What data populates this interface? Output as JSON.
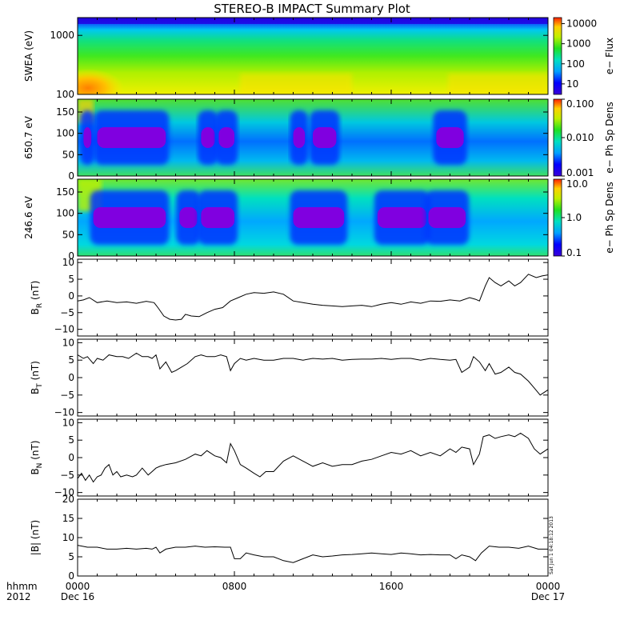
{
  "title": "STEREO-B IMPACT Summary Plot",
  "timestamp": "Sat Jun 1 04:18:12 2013",
  "colors": {
    "line": "#000000",
    "background": "#ffffff"
  },
  "footer": {
    "hhmm": "hhmm",
    "year": "2012"
  },
  "chart_data": [
    {
      "type": "heatmap",
      "id": "swea",
      "ylabel": "SWEA (eV)",
      "yscale": "log",
      "ylim": [
        100,
        2000
      ],
      "yticks": [
        100,
        1000
      ],
      "ytick_labels": [
        "100",
        "1000"
      ],
      "colorbar": {
        "label": "e− Flux",
        "scale": "log",
        "range": [
          3,
          20000
        ],
        "ticks": [
          10,
          100,
          1000,
          10000
        ],
        "tick_labels": [
          "10",
          "100",
          "1000",
          "10000"
        ]
      },
      "features": [
        "low energies (100-300 eV) ~ 1000-5000 flux",
        "upper energies (>1500 eV) ~ 3-10 flux",
        "enhancement near 0000-0200 at 100 eV"
      ]
    },
    {
      "type": "heatmap",
      "id": "pad650",
      "ylabel": "650.7 eV",
      "ylim": [
        0,
        180
      ],
      "yticks": [
        0,
        50,
        100,
        150
      ],
      "ytick_labels": [
        "0",
        "50",
        "100",
        "150"
      ],
      "colorbar": {
        "label": "e− Ph Sp Dens",
        "scale": "log",
        "range": [
          0.001,
          0.1
        ],
        "ticks": [
          0.001,
          0.01,
          0.1
        ],
        "tick_labels": [
          "0.001",
          "0.010",
          "0.100"
        ]
      },
      "depletion_intervals_hours": [
        [
          0.3,
          0.7
        ],
        [
          1.0,
          4.5
        ],
        [
          6.3,
          7.0
        ],
        [
          7.2,
          8.0
        ],
        [
          11.0,
          11.6
        ],
        [
          12.0,
          13.2
        ],
        [
          18.3,
          19.7
        ]
      ]
    },
    {
      "type": "heatmap",
      "id": "pad246",
      "ylabel": "246.6 eV",
      "ylim": [
        0,
        180
      ],
      "yticks": [
        0,
        50,
        100,
        150
      ],
      "ytick_labels": [
        "0",
        "50",
        "100",
        "150"
      ],
      "colorbar": {
        "label": "e− Ph Sp Dens",
        "scale": "log",
        "range": [
          0.1,
          10
        ],
        "ticks": [
          0.1,
          1,
          10
        ],
        "tick_labels": [
          "0.1",
          "1.0",
          "10.0"
        ]
      },
      "depletion_intervals_hours": [
        [
          0.8,
          4.5
        ],
        [
          5.2,
          6.1
        ],
        [
          6.3,
          8.0
        ],
        [
          11.0,
          13.6
        ],
        [
          15.3,
          17.8
        ],
        [
          17.9,
          19.8
        ]
      ]
    },
    {
      "type": "line",
      "id": "br",
      "ylabel": "B",
      "ylabel_sub": "R",
      "ylabel_unit": "(nT)",
      "ylim": [
        -12,
        11
      ],
      "yticks": [
        -10,
        -5,
        0,
        5,
        10
      ],
      "ytick_labels": [
        "−10",
        "−5",
        "0",
        "5",
        "10"
      ],
      "x": [
        0,
        0.3,
        0.6,
        1.0,
        1.5,
        2.0,
        2.5,
        3.0,
        3.5,
        3.9,
        4.1,
        4.4,
        4.7,
        5.0,
        5.3,
        5.5,
        5.8,
        6.2,
        6.6,
        7.0,
        7.4,
        7.8,
        8.2,
        8.6,
        9.0,
        9.5,
        10.0,
        10.5,
        11.0,
        11.5,
        12.0,
        12.5,
        13.0,
        13.5,
        14.0,
        14.5,
        15.0,
        15.5,
        16.0,
        16.5,
        17.0,
        17.5,
        18.0,
        18.5,
        19.0,
        19.5,
        20.0,
        20.3,
        20.5,
        20.8,
        21.0,
        21.3,
        21.6,
        22.0,
        22.3,
        22.6,
        23.0,
        23.4,
        23.7,
        24.0
      ],
      "y": [
        -1.5,
        -1.2,
        -0.5,
        -2.0,
        -1.5,
        -2.0,
        -1.8,
        -2.2,
        -1.6,
        -2.0,
        -3.5,
        -6.0,
        -7.0,
        -7.2,
        -7.0,
        -5.5,
        -6.0,
        -6.2,
        -5.0,
        -4.0,
        -3.5,
        -1.5,
        -0.5,
        0.5,
        1.0,
        0.8,
        1.2,
        0.5,
        -1.5,
        -2.0,
        -2.5,
        -2.8,
        -3.0,
        -3.2,
        -3.0,
        -2.8,
        -3.2,
        -2.5,
        -2.0,
        -2.5,
        -1.8,
        -2.2,
        -1.5,
        -1.6,
        -1.2,
        -1.5,
        -0.5,
        -1.0,
        -1.5,
        3.0,
        5.5,
        4.0,
        3.0,
        4.5,
        3.0,
        4.0,
        6.5,
        5.5,
        6.0,
        6.3
      ]
    },
    {
      "type": "line",
      "id": "bt",
      "ylabel": "B",
      "ylabel_sub": "T",
      "ylabel_unit": "(nT)",
      "ylim": [
        -11,
        11
      ],
      "yticks": [
        -10,
        -5,
        0,
        5,
        10
      ],
      "ytick_labels": [
        "−10",
        "−5",
        "0",
        "5",
        "10"
      ],
      "x": [
        0,
        0.3,
        0.5,
        0.8,
        1.0,
        1.3,
        1.6,
        2.0,
        2.3,
        2.6,
        3.0,
        3.3,
        3.6,
        3.8,
        4.0,
        4.2,
        4.5,
        4.8,
        5.0,
        5.3,
        5.6,
        6.0,
        6.3,
        6.6,
        7.0,
        7.3,
        7.6,
        7.8,
        8.0,
        8.3,
        8.6,
        9.0,
        9.5,
        10.0,
        10.5,
        11.0,
        11.5,
        12.0,
        12.5,
        13.0,
        13.5,
        14.0,
        14.5,
        15.0,
        15.5,
        16.0,
        16.5,
        17.0,
        17.5,
        18.0,
        18.5,
        19.0,
        19.3,
        19.6,
        20.0,
        20.2,
        20.5,
        20.8,
        21.0,
        21.3,
        21.6,
        22.0,
        22.3,
        22.6,
        23.0,
        23.3,
        23.6,
        24.0
      ],
      "y": [
        6.5,
        5.5,
        6.0,
        4.0,
        5.5,
        5.0,
        6.5,
        6.0,
        6.0,
        5.5,
        7.0,
        6.0,
        6.0,
        5.5,
        6.5,
        2.5,
        4.5,
        1.5,
        2.0,
        3.0,
        4.0,
        6.0,
        6.5,
        6.0,
        6.0,
        6.5,
        6.0,
        2.0,
        4.0,
        5.5,
        5.0,
        5.5,
        5.0,
        5.0,
        5.5,
        5.5,
        5.0,
        5.5,
        5.3,
        5.5,
        5.0,
        5.2,
        5.3,
        5.3,
        5.5,
        5.2,
        5.5,
        5.5,
        5.0,
        5.5,
        5.2,
        5.0,
        5.2,
        1.5,
        3.0,
        6.0,
        4.5,
        2.0,
        4.0,
        1.0,
        1.5,
        3.0,
        1.5,
        1.0,
        -1.0,
        -3.0,
        -5.0,
        -3.5
      ]
    },
    {
      "type": "line",
      "id": "bn",
      "ylabel": "B",
      "ylabel_sub": "N",
      "ylabel_unit": "(nT)",
      "ylim": [
        -11,
        11
      ],
      "yticks": [
        -10,
        -5,
        0,
        5,
        10
      ],
      "ytick_labels": [
        "−10",
        "−5",
        "0",
        "5",
        "10"
      ],
      "x": [
        0,
        0.2,
        0.4,
        0.6,
        0.8,
        1.0,
        1.2,
        1.4,
        1.6,
        1.8,
        2.0,
        2.2,
        2.5,
        2.8,
        3.0,
        3.3,
        3.6,
        3.8,
        4.0,
        4.2,
        4.5,
        5.0,
        5.5,
        6.0,
        6.3,
        6.6,
        7.0,
        7.3,
        7.6,
        7.8,
        8.0,
        8.3,
        8.6,
        9.0,
        9.3,
        9.6,
        10.0,
        10.5,
        11.0,
        11.5,
        12.0,
        12.5,
        13.0,
        13.5,
        14.0,
        14.5,
        15.0,
        15.5,
        16.0,
        16.5,
        17.0,
        17.5,
        18.0,
        18.5,
        19.0,
        19.3,
        19.6,
        20.0,
        20.2,
        20.5,
        20.7,
        21.0,
        21.3,
        21.6,
        22.0,
        22.3,
        22.6,
        23.0,
        23.3,
        23.6,
        24.0
      ],
      "y": [
        -6.0,
        -4.5,
        -6.5,
        -5.0,
        -7.0,
        -5.5,
        -5.0,
        -3.0,
        -2.0,
        -5.0,
        -4.0,
        -5.5,
        -5.0,
        -5.5,
        -5.0,
        -3.0,
        -5.0,
        -4.0,
        -3.0,
        -2.5,
        -2.0,
        -1.5,
        -0.5,
        1.0,
        0.5,
        2.0,
        0.5,
        0.0,
        -1.5,
        4.0,
        2.0,
        -2.0,
        -3.0,
        -4.5,
        -5.5,
        -4.0,
        -4.0,
        -1.0,
        0.5,
        -1.0,
        -2.5,
        -1.5,
        -2.5,
        -2.0,
        -2.0,
        -1.0,
        -0.5,
        0.5,
        1.5,
        1.0,
        2.0,
        0.5,
        1.5,
        0.5,
        2.5,
        1.5,
        3.0,
        2.5,
        -2.0,
        1.0,
        6.0,
        6.5,
        5.5,
        6.0,
        6.5,
        6.0,
        7.0,
        5.5,
        2.5,
        1.0,
        2.5
      ]
    },
    {
      "type": "line",
      "id": "bmag",
      "ylabel": "|B| (nT)",
      "ylim": [
        0,
        20
      ],
      "yticks": [
        0,
        5,
        10,
        15,
        20
      ],
      "ytick_labels": [
        "0",
        "5",
        "10",
        "15",
        "20"
      ],
      "x": [
        0,
        0.5,
        1.0,
        1.5,
        2.0,
        2.5,
        3.0,
        3.5,
        3.8,
        4.0,
        4.2,
        4.5,
        5.0,
        5.5,
        6.0,
        6.5,
        7.0,
        7.5,
        7.8,
        8.0,
        8.3,
        8.6,
        9.0,
        9.5,
        10.0,
        10.5,
        11.0,
        11.5,
        12.0,
        12.5,
        13.0,
        13.5,
        14.0,
        14.5,
        15.0,
        15.5,
        16.0,
        16.5,
        17.0,
        17.5,
        18.0,
        18.5,
        19.0,
        19.3,
        19.6,
        20.0,
        20.3,
        20.6,
        21.0,
        21.5,
        22.0,
        22.5,
        23.0,
        23.5,
        24.0
      ],
      "y": [
        8.0,
        7.5,
        7.5,
        7.0,
        7.0,
        7.2,
        7.0,
        7.2,
        7.0,
        7.5,
        6.0,
        7.0,
        7.5,
        7.5,
        7.8,
        7.5,
        7.6,
        7.5,
        7.5,
        4.5,
        4.5,
        6.0,
        5.5,
        5.0,
        5.0,
        4.0,
        3.5,
        4.5,
        5.5,
        5.0,
        5.2,
        5.5,
        5.6,
        5.8,
        6.0,
        5.8,
        5.6,
        6.0,
        5.8,
        5.5,
        5.6,
        5.5,
        5.5,
        4.5,
        5.5,
        5.0,
        4.0,
        6.0,
        7.8,
        7.5,
        7.5,
        7.2,
        7.8,
        7.0,
        7.0
      ]
    }
  ],
  "xaxis": {
    "range_hours": [
      0,
      24
    ],
    "major_hours": [
      0,
      8,
      16,
      24
    ],
    "major_labels": [
      "0000",
      "0800",
      "1600",
      "0000"
    ],
    "date_labels": [
      {
        "hour": 0,
        "label": "Dec 16"
      },
      {
        "hour": 24,
        "label": "Dec 17"
      }
    ]
  }
}
